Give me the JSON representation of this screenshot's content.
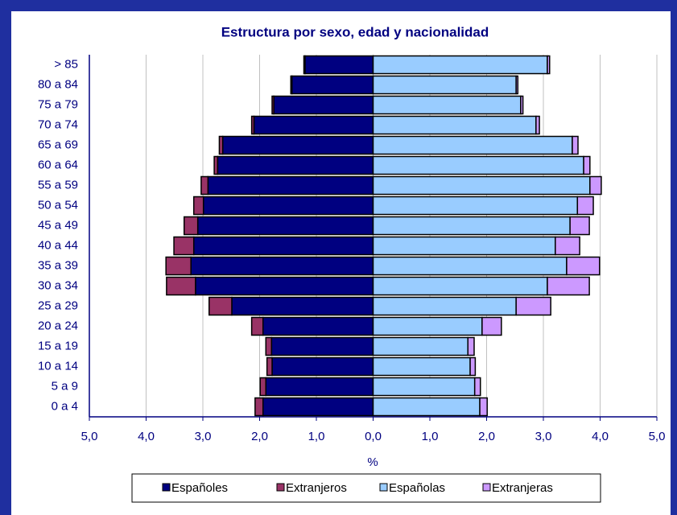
{
  "chart_data": {
    "type": "pyramid",
    "title": "Estructura por sexo, edad y nacionalidad",
    "xlabel": "%",
    "categories": [
      "0 a 4",
      "5 a 9",
      "10 a 14",
      "15 a 19",
      "20 a 24",
      "25 a 29",
      "30 a 34",
      "35 a 39",
      "40 a 44",
      "45 a 49",
      "50 a 54",
      "55 a 59",
      "60 a 64",
      "65 a 69",
      "70 a 74",
      "75 a 79",
      "80 a 84",
      "> 85"
    ],
    "series": [
      {
        "name": "Españoles",
        "color": "#000080",
        "values": [
          -1.94,
          -1.89,
          -1.78,
          -1.79,
          -1.94,
          -2.49,
          -3.13,
          -3.21,
          -3.16,
          -3.09,
          -2.99,
          -2.91,
          -2.74,
          -2.65,
          -2.1,
          -1.75,
          -1.43,
          -1.2
        ]
      },
      {
        "name": "Extranjeros",
        "color": "#993366",
        "values": [
          -0.14,
          -0.1,
          -0.09,
          -0.1,
          -0.2,
          -0.4,
          -0.51,
          -0.44,
          -0.35,
          -0.24,
          -0.17,
          -0.12,
          -0.06,
          -0.06,
          -0.04,
          -0.03,
          -0.02,
          -0.02
        ]
      },
      {
        "name": "Españolas",
        "color": "#99ccff",
        "values": [
          1.88,
          1.79,
          1.71,
          1.67,
          1.92,
          2.52,
          3.07,
          3.41,
          3.21,
          3.47,
          3.6,
          3.82,
          3.71,
          3.51,
          2.87,
          2.6,
          2.52,
          3.07
        ]
      },
      {
        "name": "Extranjeras",
        "color": "#cc99ff",
        "values": [
          0.13,
          0.1,
          0.09,
          0.11,
          0.34,
          0.61,
          0.74,
          0.58,
          0.43,
          0.34,
          0.28,
          0.2,
          0.11,
          0.1,
          0.06,
          0.04,
          0.03,
          0.04
        ]
      }
    ],
    "xlim": [
      -5,
      5
    ],
    "xticks": [
      {
        "value": -5,
        "label": "5,0"
      },
      {
        "value": -4,
        "label": "4,0"
      },
      {
        "value": -3,
        "label": "3,0"
      },
      {
        "value": -2,
        "label": "2,0"
      },
      {
        "value": -1,
        "label": "1,0"
      },
      {
        "value": 0,
        "label": "0,0"
      },
      {
        "value": 1,
        "label": "1,0"
      },
      {
        "value": 2,
        "label": "2,0"
      },
      {
        "value": 3,
        "label": "3,0"
      },
      {
        "value": 4,
        "label": "4,0"
      },
      {
        "value": 5,
        "label": "5,0"
      }
    ],
    "grid": true
  }
}
